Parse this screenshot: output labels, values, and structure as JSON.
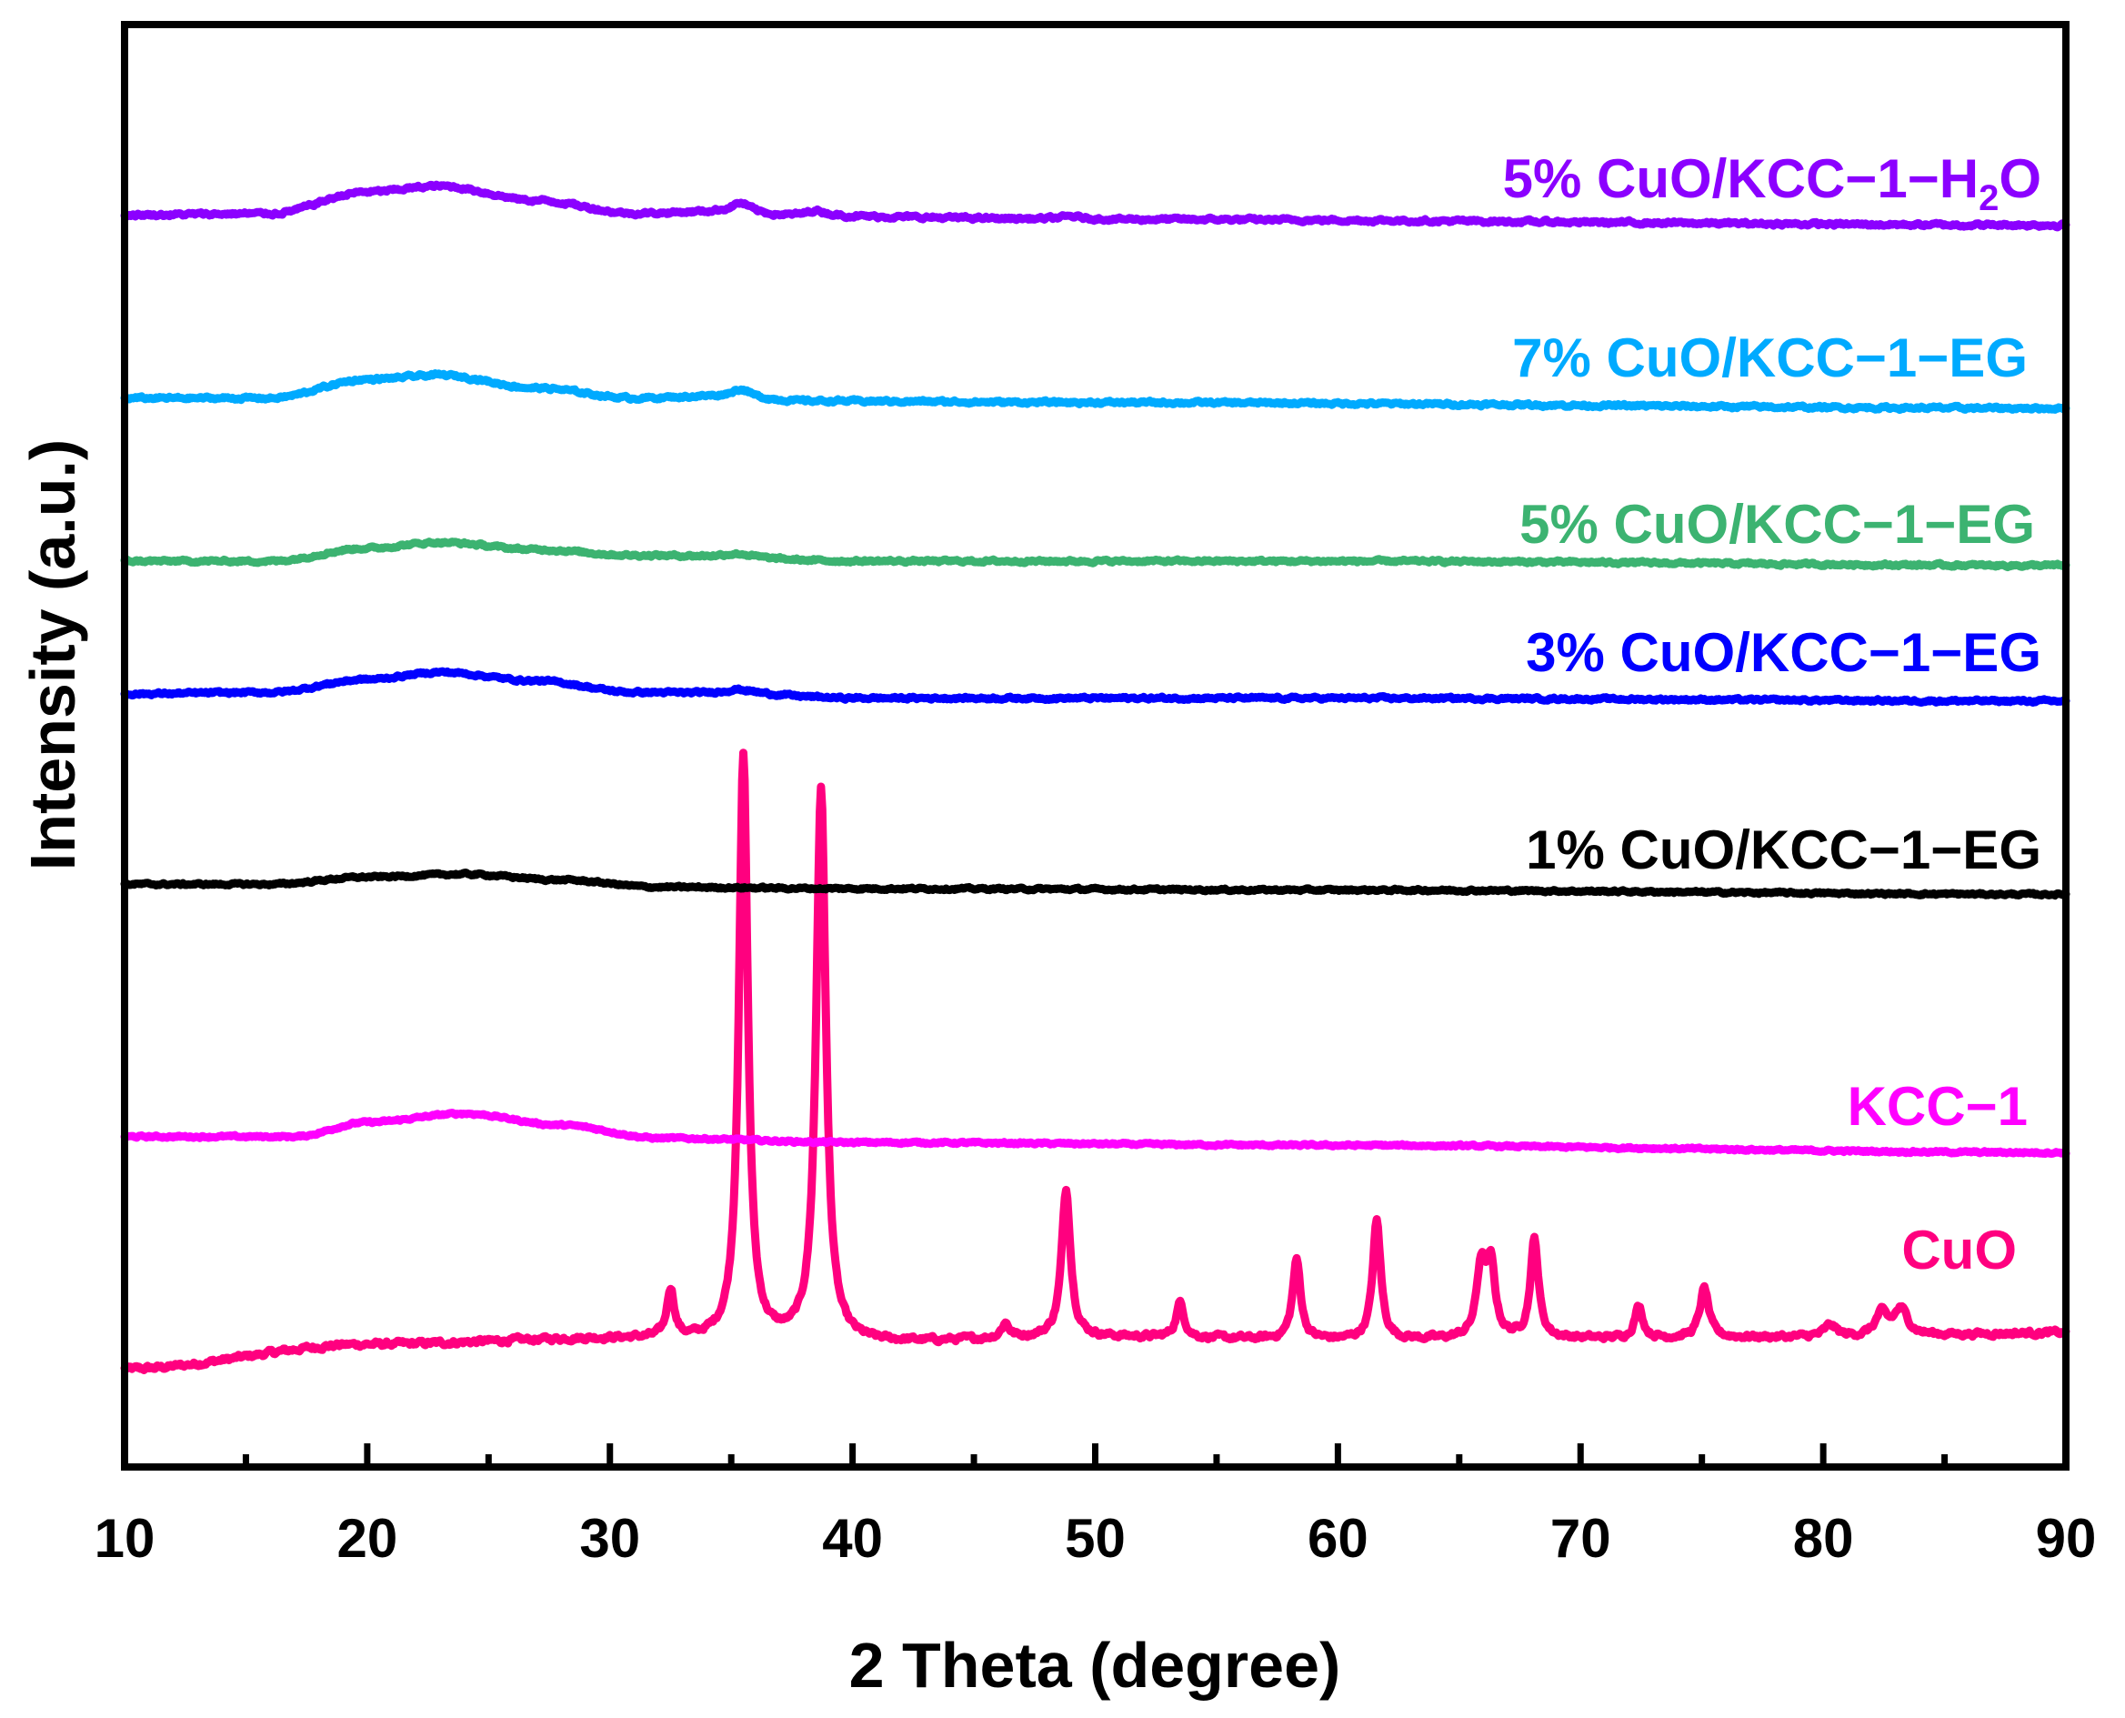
{
  "chart_data": {
    "type": "line",
    "title": "",
    "xlabel": "2 Theta (degree)",
    "ylabel": "Intensity (a.u.)",
    "xlim": [
      10,
      90
    ],
    "ylim": [
      0,
      100
    ],
    "xticks": [
      10,
      20,
      30,
      40,
      50,
      60,
      70,
      80,
      90
    ],
    "xtick_labels": [
      "10",
      "20",
      "30",
      "40",
      "50",
      "60",
      "70",
      "80",
      "90"
    ],
    "yticks_shown": false,
    "legend": "labels placed at right end of each trace",
    "series": [
      {
        "name": "CuO",
        "label": "CuO",
        "color": "#ff007f",
        "baseline": [
          [
            10,
            6.8
          ],
          [
            20,
            8.5
          ],
          [
            30,
            8.9
          ],
          [
            40,
            8.6
          ],
          [
            50,
            9.0
          ],
          [
            60,
            8.8
          ],
          [
            70,
            8.9
          ],
          [
            80,
            9.0
          ],
          [
            90,
            9.3
          ]
        ],
        "peaks": [
          {
            "x": 32.5,
            "height": 3.4,
            "width": 0.18
          },
          {
            "x": 35.5,
            "height": 40.5,
            "width": 0.22
          },
          {
            "x": 38.7,
            "height": 38.3,
            "width": 0.24
          },
          {
            "x": 46.3,
            "height": 1.0,
            "width": 0.2
          },
          {
            "x": 48.8,
            "height": 10.2,
            "width": 0.22
          },
          {
            "x": 53.5,
            "height": 2.4,
            "width": 0.2
          },
          {
            "x": 58.3,
            "height": 5.5,
            "width": 0.2
          },
          {
            "x": 61.6,
            "height": 8.2,
            "width": 0.2
          },
          {
            "x": 65.9,
            "height": 4.8,
            "width": 0.22
          },
          {
            "x": 66.3,
            "height": 4.8,
            "width": 0.22
          },
          {
            "x": 68.1,
            "height": 6.8,
            "width": 0.2
          },
          {
            "x": 72.4,
            "height": 2.2,
            "width": 0.2
          },
          {
            "x": 75.1,
            "height": 3.4,
            "width": 0.22
          },
          {
            "x": 80.3,
            "height": 0.8,
            "width": 0.3
          },
          {
            "x": 82.4,
            "height": 1.5,
            "width": 0.3
          },
          {
            "x": 83.2,
            "height": 1.8,
            "width": 0.35
          }
        ],
        "noise": 0.35
      },
      {
        "name": "KCC-1",
        "label": "KCC−1",
        "color": "#ff00ff",
        "baseline": [
          [
            10,
            22.9
          ],
          [
            17,
            22.9
          ],
          [
            20,
            23.9
          ],
          [
            24,
            24.5
          ],
          [
            28,
            23.7
          ],
          [
            32,
            22.8
          ],
          [
            40,
            22.5
          ],
          [
            60,
            22.3
          ],
          [
            90,
            21.8
          ]
        ],
        "peaks": [],
        "noise": 0.15
      },
      {
        "name": "1% CuO/KCC-1-EG",
        "label": "1% CuO/KCC−1−EG",
        "color": "#000000",
        "baseline": [
          [
            10,
            40.4
          ],
          [
            16,
            40.4
          ],
          [
            20,
            40.9
          ],
          [
            24,
            41.1
          ],
          [
            28,
            40.7
          ],
          [
            32,
            40.2
          ],
          [
            40,
            40.1
          ],
          [
            60,
            40.0
          ],
          [
            90,
            39.7
          ]
        ],
        "peaks": [],
        "noise": 0.15
      },
      {
        "name": "3% CuO/KCC-1-EG",
        "label": "3% CuO/KCC−1−EG",
        "color": "#0000ff",
        "baseline": [
          [
            10,
            53.6
          ],
          [
            16,
            53.7
          ],
          [
            20,
            54.6
          ],
          [
            23,
            55.1
          ],
          [
            27,
            54.5
          ],
          [
            31,
            53.7
          ],
          [
            35,
            53.6
          ],
          [
            40,
            53.3
          ],
          [
            60,
            53.3
          ],
          [
            90,
            53.1
          ]
        ],
        "peaks": [
          {
            "x": 35.3,
            "height": 0.3,
            "width": 0.8
          }
        ],
        "noise": 0.18
      },
      {
        "name": "5% CuO/KCC-1-EG",
        "label": "5% CuO/KCC−1−EG",
        "color": "#3cb371",
        "baseline": [
          [
            10,
            62.8
          ],
          [
            16,
            62.8
          ],
          [
            20,
            63.7
          ],
          [
            23,
            64.1
          ],
          [
            27,
            63.6
          ],
          [
            31,
            63.2
          ],
          [
            40,
            62.8
          ],
          [
            60,
            62.8
          ],
          [
            90,
            62.5
          ]
        ],
        "peaks": [
          {
            "x": 35.3,
            "height": 0.3,
            "width": 0.8
          }
        ],
        "noise": 0.18
      },
      {
        "name": "7% CuO/KCC-1-EG",
        "label": "7% CuO/KCC−1−EG",
        "color": "#00aaff",
        "baseline": [
          [
            10,
            74.1
          ],
          [
            16,
            74.1
          ],
          [
            20,
            75.4
          ],
          [
            23,
            75.7
          ],
          [
            27,
            74.8
          ],
          [
            31,
            74.1
          ],
          [
            34,
            74.2
          ],
          [
            38,
            73.9
          ],
          [
            50,
            73.8
          ],
          [
            90,
            73.4
          ]
        ],
        "peaks": [
          {
            "x": 35.4,
            "height": 0.6,
            "width": 0.5
          }
        ],
        "noise": 0.2
      },
      {
        "name": "5% CuO/KCC-1-H2O",
        "label_main": "5% CuO/KCC−1−H",
        "label_sub": "2",
        "label_tail": "O",
        "color": "#8b00ff",
        "baseline": [
          [
            10,
            86.8
          ],
          [
            16,
            86.9
          ],
          [
            20,
            88.4
          ],
          [
            23,
            88.8
          ],
          [
            27,
            87.8
          ],
          [
            31,
            86.9
          ],
          [
            34,
            87.0
          ],
          [
            38,
            86.7
          ],
          [
            50,
            86.5
          ],
          [
            90,
            86.1
          ]
        ],
        "peaks": [
          {
            "x": 35.4,
            "height": 0.7,
            "width": 0.5
          },
          {
            "x": 38.5,
            "height": 0.4,
            "width": 0.5
          },
          {
            "x": 49.0,
            "height": 0.2,
            "width": 0.5
          }
        ],
        "noise": 0.22
      }
    ]
  }
}
